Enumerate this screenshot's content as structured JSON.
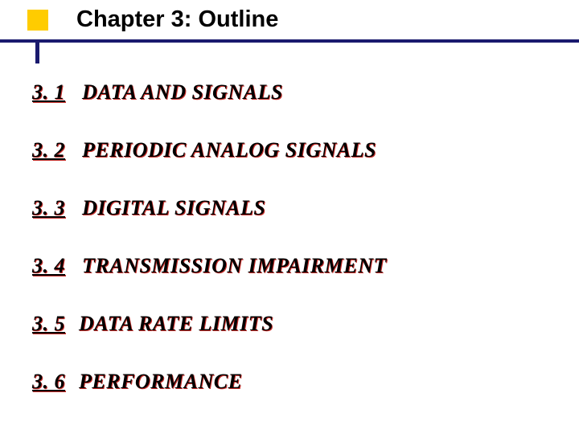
{
  "title": "Chapter 3: Outline",
  "bullet_color": "#ffcc00",
  "accent_line_color": "#1a1a6e",
  "text_shadow_color": "#c9302c",
  "text_color": "#000000",
  "background_color": "#ffffff",
  "title_fontsize": 29,
  "item_fontsize": 26,
  "items": [
    {
      "num": "3. 1",
      "text": "DATA  AND  SIGNALS"
    },
    {
      "num": "3. 2",
      "text": "PERIODIC  ANALOG  SIGNALS"
    },
    {
      "num": "3. 3",
      "text": "DIGITAL SIGNALS"
    },
    {
      "num": "3. 4",
      "text": "TRANSMISSION IMPAIRMENT"
    },
    {
      "num": "3. 5",
      "text": "DATA RATE LIMITS"
    },
    {
      "num": "3. 6",
      "text": "PERFORMANCE"
    }
  ]
}
